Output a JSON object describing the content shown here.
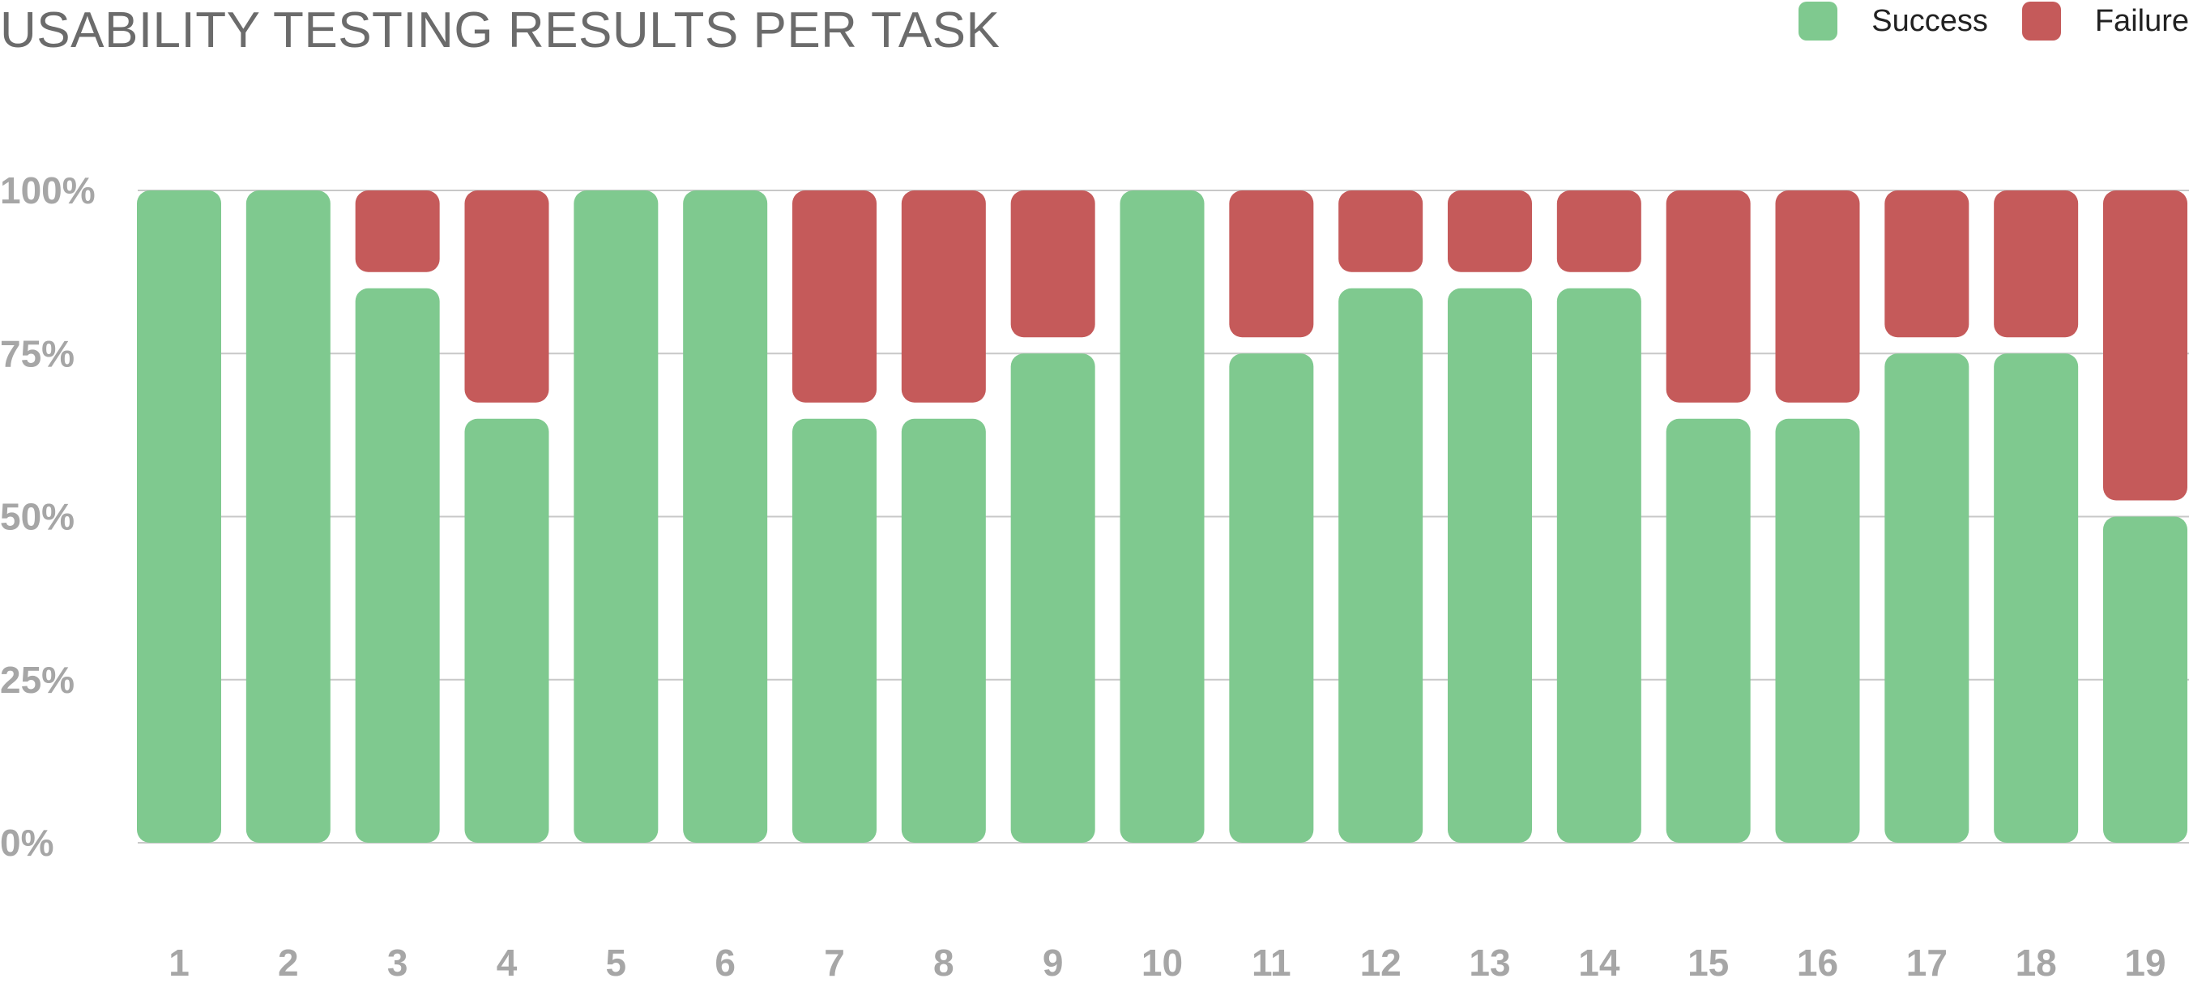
{
  "chart_data": {
    "type": "bar",
    "stacked": true,
    "title": "USABILITY TESTING RESULTS PER TASK",
    "xlabel": "",
    "ylabel": "",
    "categories": [
      "1",
      "2",
      "3",
      "4",
      "5",
      "6",
      "7",
      "8",
      "9",
      "10",
      "11",
      "12",
      "13",
      "14",
      "15",
      "16",
      "17",
      "18",
      "19"
    ],
    "series": [
      {
        "name": "Success",
        "color": "#7fc98f",
        "values": [
          100,
          100,
          85,
          65,
          100,
          100,
          65,
          65,
          75,
          100,
          75,
          85,
          85,
          85,
          65,
          65,
          75,
          75,
          50
        ]
      },
      {
        "name": "Failure",
        "color": "#c55a5a",
        "values": [
          0,
          0,
          15,
          35,
          0,
          0,
          35,
          35,
          25,
          0,
          25,
          15,
          15,
          15,
          35,
          35,
          25,
          25,
          50
        ]
      }
    ],
    "y_ticks": [
      "0%",
      "25%",
      "50%",
      "75%",
      "100%"
    ],
    "y_tick_values": [
      0,
      25,
      50,
      75,
      100
    ],
    "ylim": [
      0,
      100
    ],
    "grid": true,
    "legend_position": "top-right"
  }
}
